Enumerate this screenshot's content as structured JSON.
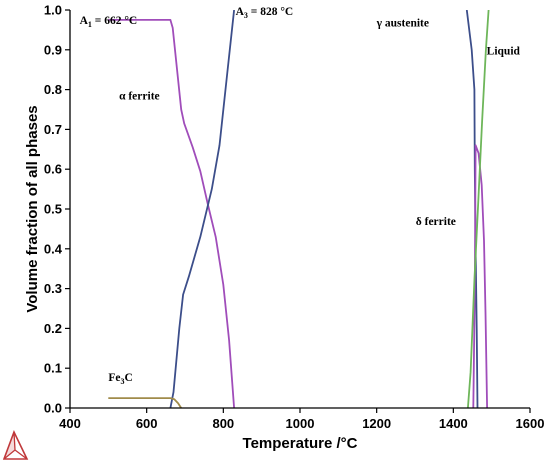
{
  "chart_data": {
    "type": "line",
    "title": "",
    "xlabel": "Temperature /°C",
    "ylabel": "Volume fraction of all phases",
    "xlim": [
      400,
      1600
    ],
    "ylim": [
      0,
      1
    ],
    "x_ticks": [
      "400",
      "600",
      "800",
      "1000",
      "1200",
      "1400",
      "1600"
    ],
    "y_ticks": [
      "0.0",
      "0.1",
      "0.2",
      "0.3",
      "0.4",
      "0.5",
      "0.6",
      "0.7",
      "0.8",
      "0.9",
      "1.0"
    ],
    "grid": false,
    "series": [
      {
        "key": "alpha",
        "color": "#a04dba",
        "points": [
          [
            500,
            0.975
          ],
          [
            662,
            0.975
          ],
          [
            668,
            0.955
          ],
          [
            690,
            0.75
          ],
          [
            698,
            0.715
          ],
          [
            720,
            0.655
          ],
          [
            740,
            0.595
          ],
          [
            760,
            0.51
          ],
          [
            780,
            0.43
          ],
          [
            800,
            0.31
          ],
          [
            815,
            0.17
          ],
          [
            828,
            0.0
          ]
        ]
      },
      {
        "key": "gamma-low",
        "color": "#3c4e8a",
        "points": [
          [
            662,
            0.0
          ],
          [
            670,
            0.04
          ],
          [
            685,
            0.2
          ],
          [
            695,
            0.285
          ],
          [
            710,
            0.33
          ],
          [
            740,
            0.43
          ],
          [
            770,
            0.55
          ],
          [
            790,
            0.66
          ],
          [
            810,
            0.84
          ],
          [
            828,
            1.0
          ]
        ]
      },
      {
        "key": "gamma-high",
        "color": "#3c4e8a",
        "points": [
          [
            1435,
            1.0
          ],
          [
            1448,
            0.9
          ],
          [
            1455,
            0.8
          ],
          [
            1456,
            0.6
          ],
          [
            1458,
            0.4
          ],
          [
            1461,
            0.2
          ],
          [
            1463,
            0.0
          ]
        ]
      },
      {
        "key": "delta",
        "color": "#a04dba",
        "points": [
          [
            1452,
            0.0
          ],
          [
            1456,
            0.3
          ],
          [
            1458,
            0.66
          ],
          [
            1466,
            0.64
          ],
          [
            1474,
            0.56
          ],
          [
            1480,
            0.42
          ],
          [
            1484,
            0.24
          ],
          [
            1488,
            0.0
          ]
        ]
      },
      {
        "key": "liquid",
        "color": "#6eb65a",
        "points": [
          [
            1438,
            0.0
          ],
          [
            1445,
            0.09
          ],
          [
            1455,
            0.32
          ],
          [
            1465,
            0.52
          ],
          [
            1475,
            0.72
          ],
          [
            1485,
            0.9
          ],
          [
            1492,
            1.0
          ]
        ]
      },
      {
        "key": "fe3c",
        "color": "#a08b4a",
        "points": [
          [
            500,
            0.025
          ],
          [
            662,
            0.025
          ],
          [
            672,
            0.022
          ],
          [
            682,
            0.012
          ],
          [
            690,
            0.0
          ]
        ]
      }
    ],
    "annotations": [
      {
        "key": "a1",
        "main": "A",
        "sub": "1",
        "rest": " = 662 °C",
        "x": 425,
        "y": 0.965
      },
      {
        "key": "a3",
        "main": "A",
        "sub": "3",
        "rest": " = 828 °C",
        "x": 832,
        "y": 0.988
      },
      {
        "key": "alpha-ferrite",
        "main": "α ferrite",
        "sub": "",
        "rest": "",
        "x": 528,
        "y": 0.775
      },
      {
        "key": "gamma-austenite",
        "main": "γ austenite",
        "sub": "",
        "rest": "",
        "x": 1200,
        "y": 0.958
      },
      {
        "key": "liquid",
        "main": "Liquid",
        "sub": "",
        "rest": "",
        "x": 1487,
        "y": 0.888
      },
      {
        "key": "delta-ferrite",
        "main": "δ ferrite",
        "sub": "",
        "rest": "",
        "x": 1302,
        "y": 0.46
      },
      {
        "key": "fe3c",
        "main": "Fe",
        "sub": "3",
        "rest": "C",
        "x": 500,
        "y": 0.068
      }
    ]
  },
  "logo": {
    "name": "thermo-calc-logo-icon",
    "color": "#c0393b"
  }
}
